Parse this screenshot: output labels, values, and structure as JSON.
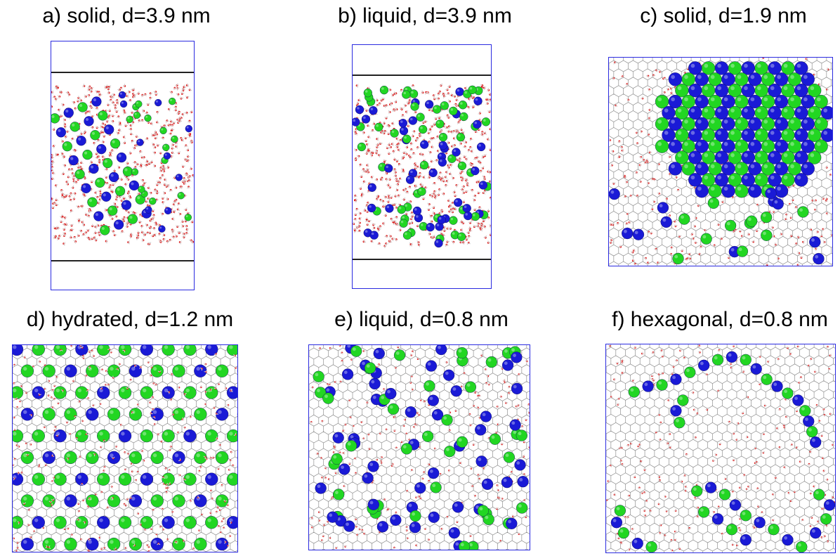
{
  "panels": [
    {
      "id": "a",
      "caption": "a) solid, d=3.9 nm",
      "kind": "side"
    },
    {
      "id": "b",
      "caption": "b) liquid, d=3.9 nm",
      "kind": "side"
    },
    {
      "id": "c",
      "caption": "c) solid, d=1.9 nm",
      "kind": "top"
    },
    {
      "id": "d",
      "caption": "d) hydrated, d=1.2 nm",
      "kind": "top"
    },
    {
      "id": "e",
      "caption": "e) liquid, d=0.8 nm",
      "kind": "top"
    },
    {
      "id": "f",
      "caption": "f) hexagonal, d=0.8 nm",
      "kind": "top"
    }
  ],
  "colors": {
    "border": "#2a2ae0",
    "cation": "#1a1ad6",
    "anion": "#22d622",
    "oxygen": "#e01010",
    "hydrogen": "#f0f0f0",
    "graphene": "#555555"
  }
}
